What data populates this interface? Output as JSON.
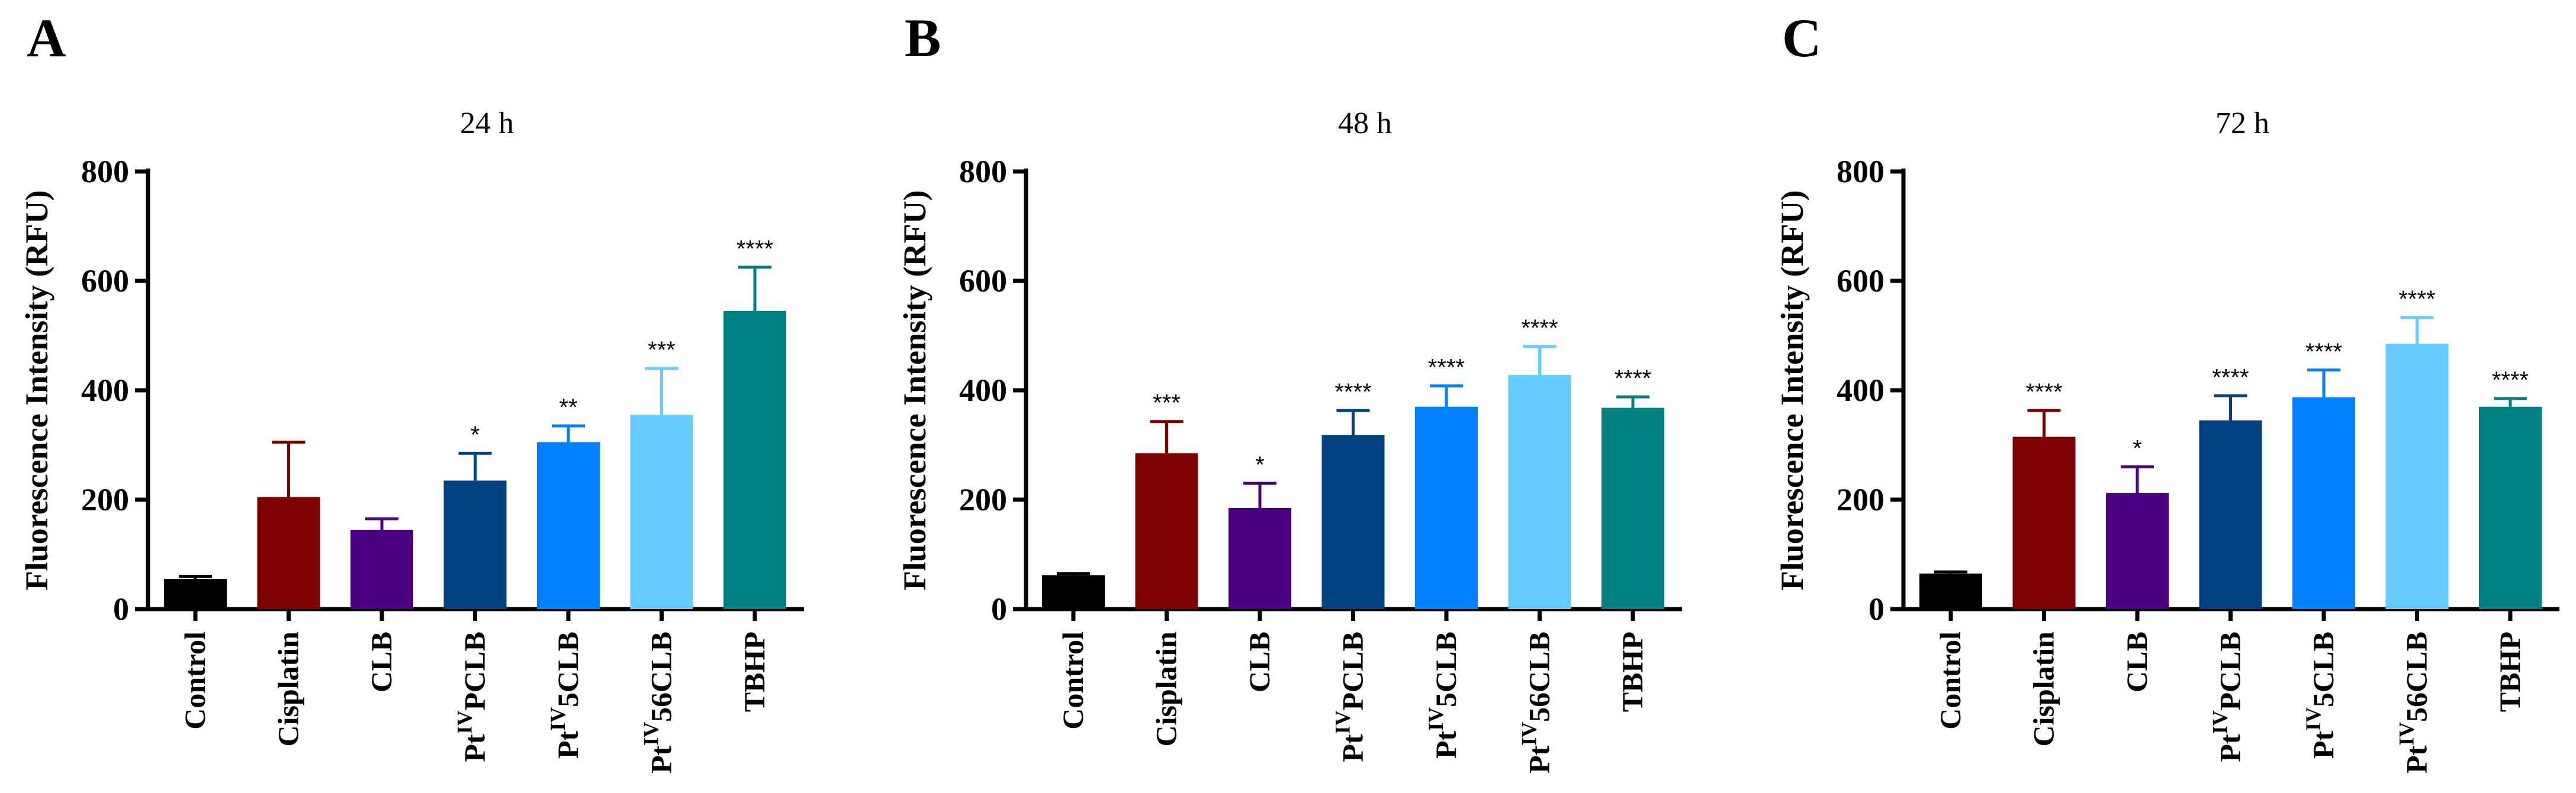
{
  "figure": {
    "y_axis_label": "Fluorescence Intensity (RFU)",
    "y_ticks": [
      0,
      200,
      400,
      600,
      800
    ],
    "ylim": [
      0,
      800
    ],
    "categories": [
      {
        "pre": "Control",
        "sup": "",
        "post": ""
      },
      {
        "pre": "Cisplatin",
        "sup": "",
        "post": ""
      },
      {
        "pre": "CLB",
        "sup": "",
        "post": ""
      },
      {
        "pre": "Pt",
        "sup": "IV",
        "post": "PCLB"
      },
      {
        "pre": "Pt",
        "sup": "IV",
        "post": "5CLB"
      },
      {
        "pre": "Pt",
        "sup": "IV",
        "post": "56CLB"
      },
      {
        "pre": "TBHP",
        "sup": "",
        "post": ""
      }
    ],
    "colors": [
      "#000000",
      "#7F0000",
      "#4B0082",
      "#00427F",
      "#0080FF",
      "#66CCFF",
      "#008080"
    ]
  },
  "chart_data": [
    {
      "type": "bar",
      "panel": "A",
      "title": "24 h",
      "xlabel": "",
      "ylabel": "Fluorescence Intensity (RFU)",
      "ylim": [
        0,
        800
      ],
      "categories": [
        "Control",
        "Cisplatin",
        "CLB",
        "PtIVPCLB",
        "PtIV5CLB",
        "PtIV56CLB",
        "TBHP"
      ],
      "values": [
        55,
        205,
        145,
        235,
        305,
        355,
        545
      ],
      "error": [
        5,
        100,
        20,
        50,
        30,
        85,
        80
      ],
      "significance": [
        "",
        "",
        "",
        "*",
        "**",
        "***",
        "****"
      ]
    },
    {
      "type": "bar",
      "panel": "B",
      "title": "48 h",
      "xlabel": "",
      "ylabel": "Fluorescence Intensity (RFU)",
      "ylim": [
        0,
        800
      ],
      "categories": [
        "Control",
        "Cisplatin",
        "CLB",
        "PtIVPCLB",
        "PtIV5CLB",
        "PtIV56CLB",
        "TBHP"
      ],
      "values": [
        62,
        285,
        185,
        318,
        370,
        428,
        368
      ],
      "error": [
        3,
        58,
        45,
        45,
        38,
        52,
        20
      ],
      "significance": [
        "",
        "***",
        "*",
        "****",
        "****",
        "****",
        "****"
      ]
    },
    {
      "type": "bar",
      "panel": "C",
      "title": "72 h",
      "xlabel": "",
      "ylabel": "Fluorescence Intensity (RFU)",
      "ylim": [
        0,
        800
      ],
      "categories": [
        "Control",
        "Cisplatin",
        "CLB",
        "PtIVPCLB",
        "PtIV5CLB",
        "PtIV56CLB",
        "TBHP"
      ],
      "values": [
        65,
        315,
        212,
        345,
        387,
        485,
        370
      ],
      "error": [
        3,
        48,
        48,
        45,
        50,
        48,
        15
      ],
      "significance": [
        "",
        "****",
        "*",
        "****",
        "****",
        "****",
        "****"
      ]
    }
  ]
}
